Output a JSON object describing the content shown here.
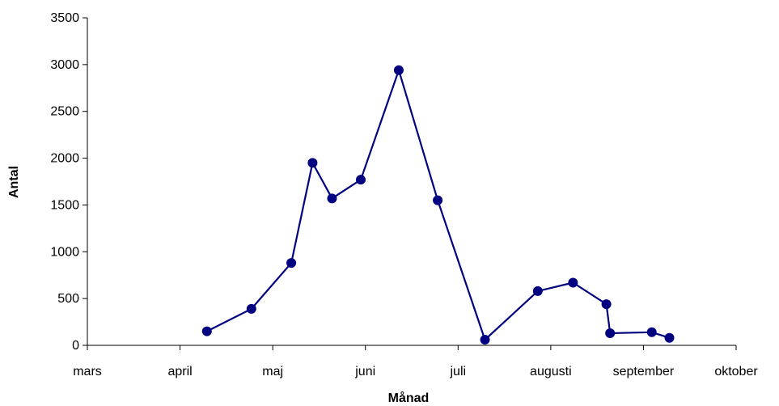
{
  "chart_data": {
    "type": "line",
    "xlabel": "Månad",
    "ylabel": "Antal",
    "x_ticks": [
      "mars",
      "april",
      "maj",
      "juni",
      "juli",
      "augusti",
      "september",
      "oktober"
    ],
    "xlim": [
      0,
      7
    ],
    "ylim": [
      0,
      3500
    ],
    "y_ticks": [
      0,
      500,
      1000,
      1500,
      2000,
      2500,
      3000,
      3500
    ],
    "grid": false,
    "series": [
      {
        "color": "#000080",
        "x": [
          1.29,
          1.77,
          2.2,
          2.43,
          2.64,
          2.95,
          3.36,
          3.78,
          4.29,
          4.86,
          5.24,
          5.6,
          5.64,
          6.09,
          6.28
        ],
        "y": [
          150,
          390,
          880,
          1950,
          1570,
          1770,
          2940,
          1550,
          60,
          580,
          670,
          440,
          130,
          140,
          80
        ]
      }
    ]
  }
}
